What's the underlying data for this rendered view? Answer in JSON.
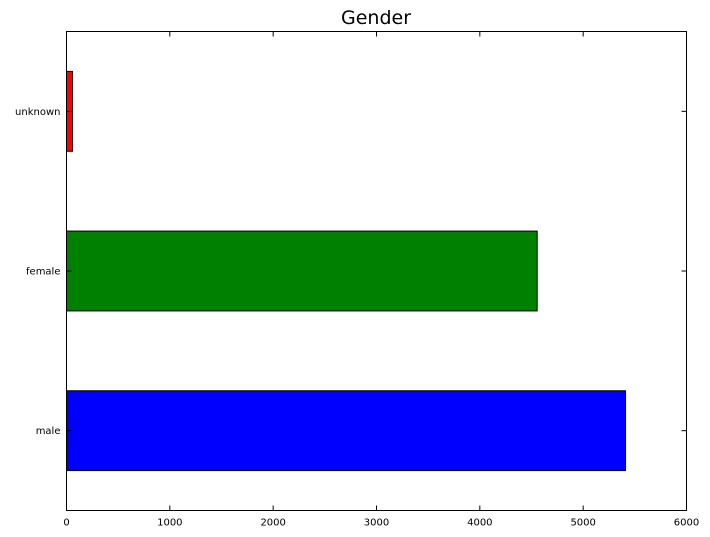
{
  "chart_data": {
    "type": "bar",
    "orientation": "horizontal",
    "title": "Gender",
    "categories": [
      "male",
      "female",
      "unknown"
    ],
    "values": [
      5410,
      4555,
      58
    ],
    "colors": [
      "#0000ff",
      "#008000",
      "#ff0000"
    ],
    "xlabel": "",
    "ylabel": "",
    "xlim": [
      0,
      6000
    ],
    "xticks": [
      0,
      1000,
      2000,
      3000,
      4000,
      5000,
      6000
    ],
    "grid": false
  }
}
